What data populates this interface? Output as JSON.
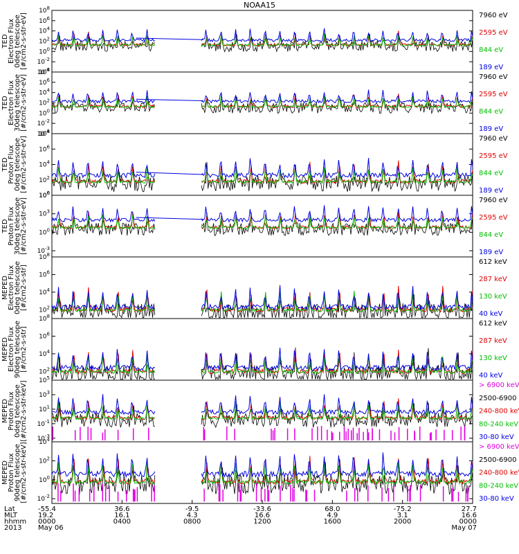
{
  "chart_data": {
    "type": "line",
    "title": "NOAA15",
    "x_axis": {
      "ticks": [
        {
          "lat": "-55.4",
          "mlt": "19.2",
          "hhmm": "0000",
          "date": "May 06"
        },
        {
          "lat": "36.6",
          "mlt": "16.1",
          "hhmm": "0400",
          "date": ""
        },
        {
          "lat": "-9.5",
          "mlt": "4.3",
          "hhmm": "0800",
          "date": ""
        },
        {
          "lat": "-33.6",
          "mlt": "16.6",
          "hhmm": "1200",
          "date": ""
        },
        {
          "lat": "68.0",
          "mlt": "4.9",
          "hhmm": "1600",
          "date": ""
        },
        {
          "lat": "-75.2",
          "mlt": "3.1",
          "hhmm": "2000",
          "date": ""
        },
        {
          "lat": "27.7",
          "mlt": "16.6",
          "hhmm": "0000",
          "date": "May 07"
        }
      ],
      "row_labels": [
        "Lat",
        "MLT",
        "hhmm",
        "2013"
      ]
    },
    "panels": [
      {
        "ylabel": [
          "TED",
          "Electron Flux",
          "0deg telescope",
          "[#/cm2-s-str-eV]"
        ],
        "ytick_exps": [
          "8",
          "6",
          "4",
          "2",
          "0",
          "-2",
          "-4"
        ],
        "log_range": [
          -4,
          8
        ],
        "baseline_exp": 1.0,
        "spike_exp": 4.6,
        "blue_base_exp": 2.2,
        "legend": [
          {
            "text": "7960 eV",
            "color": "#000000"
          },
          {
            "text": "2595 eV",
            "color": "#e00000"
          },
          {
            "text": "844 eV",
            "color": "#00c000"
          },
          {
            "text": "189 eV",
            "color": "#0000e0"
          }
        ]
      },
      {
        "ylabel": [
          "TED",
          "Electron Flux",
          "30deg telescope",
          "[#/cm2-s-str-eV]"
        ],
        "ytick_exps": [
          "8",
          "6",
          "4",
          "2",
          "0",
          "-2",
          "-4"
        ],
        "log_range": [
          -4,
          8
        ],
        "baseline_exp": 1.0,
        "spike_exp": 4.6,
        "blue_base_exp": 2.3,
        "legend": [
          {
            "text": "7960 eV",
            "color": "#000000"
          },
          {
            "text": "2595 eV",
            "color": "#e00000"
          },
          {
            "text": "844 eV",
            "color": "#00c000"
          },
          {
            "text": "189 eV",
            "color": "#0000e0"
          }
        ]
      },
      {
        "ylabel": [
          "TED",
          "Proton Flux",
          "0deg telescope",
          "[#/cm2-s-str-eV]"
        ],
        "ytick_exps": [
          "8",
          "6",
          "4",
          "2",
          "0"
        ],
        "log_range": [
          0,
          8
        ],
        "baseline_exp": 1.5,
        "spike_exp": 5.5,
        "blue_base_exp": 2.6,
        "legend": [
          {
            "text": "7960 eV",
            "color": "#000000"
          },
          {
            "text": "2595 eV",
            "color": "#e00000"
          },
          {
            "text": "844 eV",
            "color": "#00c000"
          },
          {
            "text": "189 eV",
            "color": "#0000e0"
          }
        ]
      },
      {
        "ylabel": [
          "TED",
          "Proton Flux",
          "30deg telescope",
          "[#/cm2-s-str-eV]"
        ],
        "ytick_exps": [
          "6",
          "3",
          "0",
          "-3"
        ],
        "log_range": [
          -4,
          6
        ],
        "baseline_exp": 0.5,
        "spike_exp": 4.5,
        "blue_base_exp": 2.0,
        "legend": [
          {
            "text": "7960 eV",
            "color": "#000000"
          },
          {
            "text": "2595 eV",
            "color": "#e00000"
          },
          {
            "text": "844 eV",
            "color": "#00c000"
          },
          {
            "text": "189 eV",
            "color": "#0000e0"
          }
        ]
      },
      {
        "ylabel": [
          "MEPED",
          "Electron Flux",
          "0deg telescope",
          "[#/cm2-s-str]"
        ],
        "ytick_exps": [
          "8",
          "6",
          "4",
          "2"
        ],
        "log_range": [
          1,
          8
        ],
        "baseline_exp": 1.7,
        "spike_exp": 5.5,
        "blue_base_exp": 2.3,
        "legend": [
          {
            "text": "612 keV",
            "color": "#000000"
          },
          {
            "text": "287 keV",
            "color": "#e00000"
          },
          {
            "text": "130 keV",
            "color": "#00c000"
          },
          {
            "text": "40 keV",
            "color": "#0000e0"
          }
        ]
      },
      {
        "ylabel": [
          "MEPED",
          "Electron Flux",
          "90deg telescope",
          "[#/cm2-s-str]"
        ],
        "ytick_exps": [
          "8",
          "6",
          "4",
          "2"
        ],
        "log_range": [
          1,
          8
        ],
        "baseline_exp": 1.7,
        "spike_exp": 5.8,
        "blue_base_exp": 2.4,
        "legend": [
          {
            "text": "612 keV",
            "color": "#000000"
          },
          {
            "text": "287 keV",
            "color": "#e00000"
          },
          {
            "text": "130 keV",
            "color": "#00c000"
          },
          {
            "text": "40 keV",
            "color": "#0000e0"
          }
        ]
      },
      {
        "ylabel": [
          "MEPED",
          "Proton Flux",
          "0deg telescope",
          "[#/cm2-s-str-keV]"
        ],
        "ytick_exps": [
          "5",
          "3",
          "1",
          "-1",
          "-3"
        ],
        "log_range": [
          -3.5,
          5
        ],
        "baseline_exp": -0.5,
        "spike_exp": 3.2,
        "blue_base_exp": 0.6,
        "legend": [
          {
            "text": "> 6900 keV",
            "color": "#e000e0"
          },
          {
            "text": "2500-6900",
            "color": "#000000"
          },
          {
            "text": "240-800 keV",
            "color": "#e00000"
          },
          {
            "text": "80-240 keV",
            "color": "#00c000"
          },
          {
            "text": "30-80 keV",
            "color": "#0000e0"
          }
        ]
      },
      {
        "ylabel": [
          "MEPED",
          "Proton Flux",
          "90deg telescope",
          "[#/cm2-s-str-keV]"
        ],
        "ytick_exps": [
          "4",
          "2",
          "0",
          "-2"
        ],
        "log_range": [
          -2.5,
          4
        ],
        "baseline_exp": -0.5,
        "spike_exp": 3.2,
        "blue_base_exp": 0.6,
        "legend": [
          {
            "text": "> 6900 keV",
            "color": "#e000e0"
          },
          {
            "text": "2500-6900",
            "color": "#000000"
          },
          {
            "text": "240-800 keV",
            "color": "#e00000"
          },
          {
            "text": "80-240 keV",
            "color": "#00c000"
          },
          {
            "text": "30-80 keV",
            "color": "#0000e0"
          }
        ]
      }
    ]
  }
}
